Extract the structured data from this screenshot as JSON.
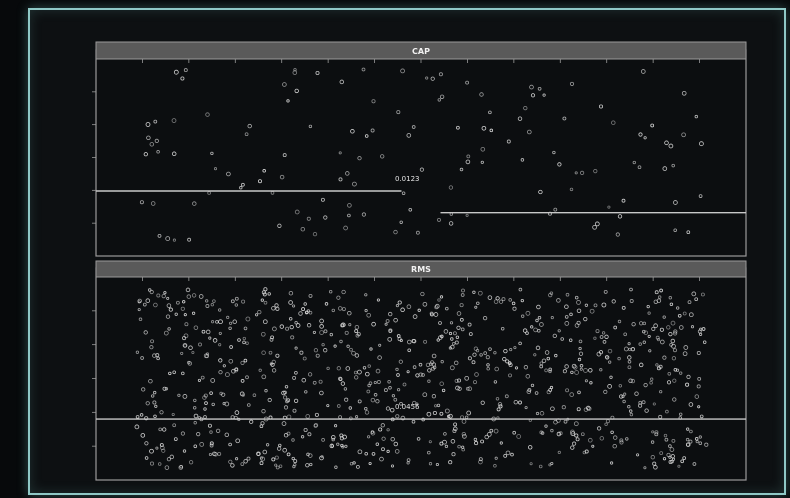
{
  "colors": {
    "background": "#0d1012",
    "frame_glow": "#8fc8c6",
    "panel_border": "#9a9a9a",
    "header_fill": "#5a5a5a",
    "points": "#d8d8d8",
    "threshold_line": "#c8c8c8"
  },
  "chart_data": [
    {
      "type": "scatter",
      "title": "CAP",
      "xlim": [
        0,
        100
      ],
      "ylim": [
        0,
        100
      ],
      "grid": false,
      "threshold_segments": [
        {
          "x_start": 0,
          "x_end": 47,
          "y": 33
        },
        {
          "x_start": 53,
          "x_end": 100,
          "y": 22
        }
      ],
      "annotation": {
        "text": "0.0123",
        "x": 46,
        "y": 38
      },
      "point_count": 140,
      "seed": 11,
      "x_range": [
        6,
        94
      ],
      "y_range": [
        8,
        95
      ]
    },
    {
      "type": "scatter",
      "title": "RMS",
      "xlim": [
        0,
        100
      ],
      "ylim": [
        0,
        100
      ],
      "grid": false,
      "threshold_segments": [
        {
          "x_start": 0,
          "x_end": 100,
          "y": 30
        }
      ],
      "annotation": {
        "text": "0.0456",
        "x": 46,
        "y": 35
      },
      "point_count": 900,
      "seed": 29,
      "x_range": [
        6,
        94
      ],
      "y_range": [
        6,
        94
      ]
    }
  ]
}
